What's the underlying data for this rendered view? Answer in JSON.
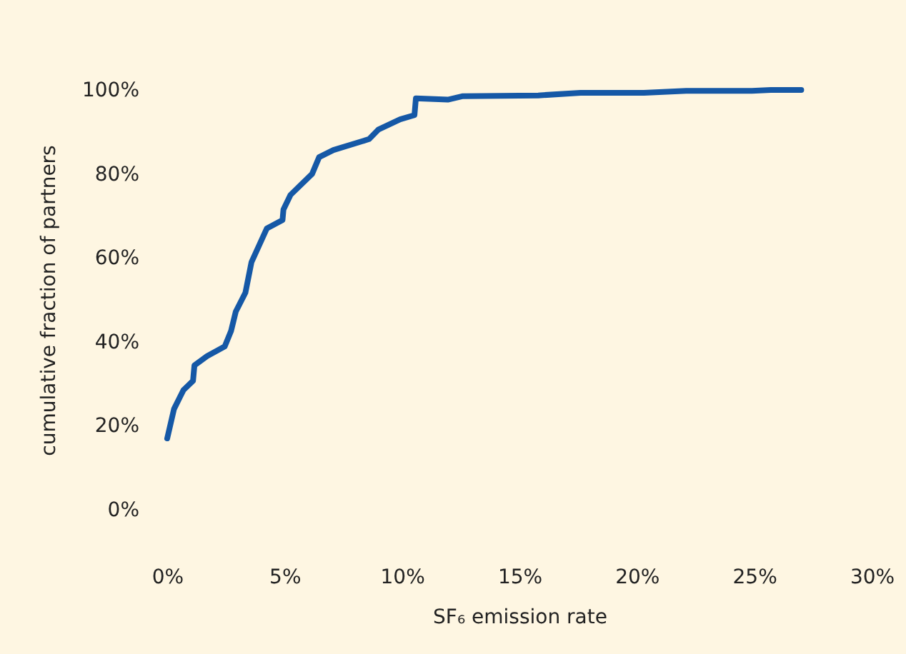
{
  "chart_data": {
    "type": "line",
    "xlabel": "SF₆ emission rate",
    "ylabel": "cumulative fraction of partners",
    "x": [
      0.0,
      0.29,
      0.69,
      1.1,
      1.16,
      1.7,
      2.45,
      2.72,
      2.92,
      3.33,
      3.59,
      4.24,
      4.91,
      4.95,
      5.25,
      6.17,
      6.47,
      7.08,
      8.6,
      9.0,
      9.92,
      10.53,
      10.59,
      11.95,
      12.56,
      15.8,
      17.6,
      20.3,
      22.1,
      24.9,
      25.7,
      27.0
    ],
    "series": [
      {
        "color": "#1558a6",
        "values": [
          17,
          24,
          28.5,
          30.7,
          34.4,
          36.6,
          38.9,
          42.6,
          47.2,
          51.7,
          59,
          67,
          69,
          71.5,
          75,
          80,
          84,
          85.7,
          88.3,
          90.6,
          93,
          94,
          98,
          97.7,
          98.5,
          98.7,
          99.3,
          99.3,
          99.8,
          99.8,
          100,
          100
        ]
      }
    ],
    "xlim": [
      0,
      30
    ],
    "ylim": [
      0,
      100
    ],
    "xticks": [
      {
        "value": 0,
        "label": "0%"
      },
      {
        "value": 5,
        "label": "5%"
      },
      {
        "value": 10,
        "label": "10%"
      },
      {
        "value": 15,
        "label": "15%"
      },
      {
        "value": 20,
        "label": "20%"
      },
      {
        "value": 25,
        "label": "25%"
      },
      {
        "value": 30,
        "label": "30%"
      }
    ],
    "yticks": [
      {
        "value": 0,
        "label": "0%"
      },
      {
        "value": 20,
        "label": "20%"
      },
      {
        "value": 40,
        "label": "40%"
      },
      {
        "value": 60,
        "label": "60%"
      },
      {
        "value": 80,
        "label": "80%"
      },
      {
        "value": 100,
        "label": "100%"
      }
    ],
    "grid": false,
    "line_style": "solid",
    "marker": "none"
  }
}
